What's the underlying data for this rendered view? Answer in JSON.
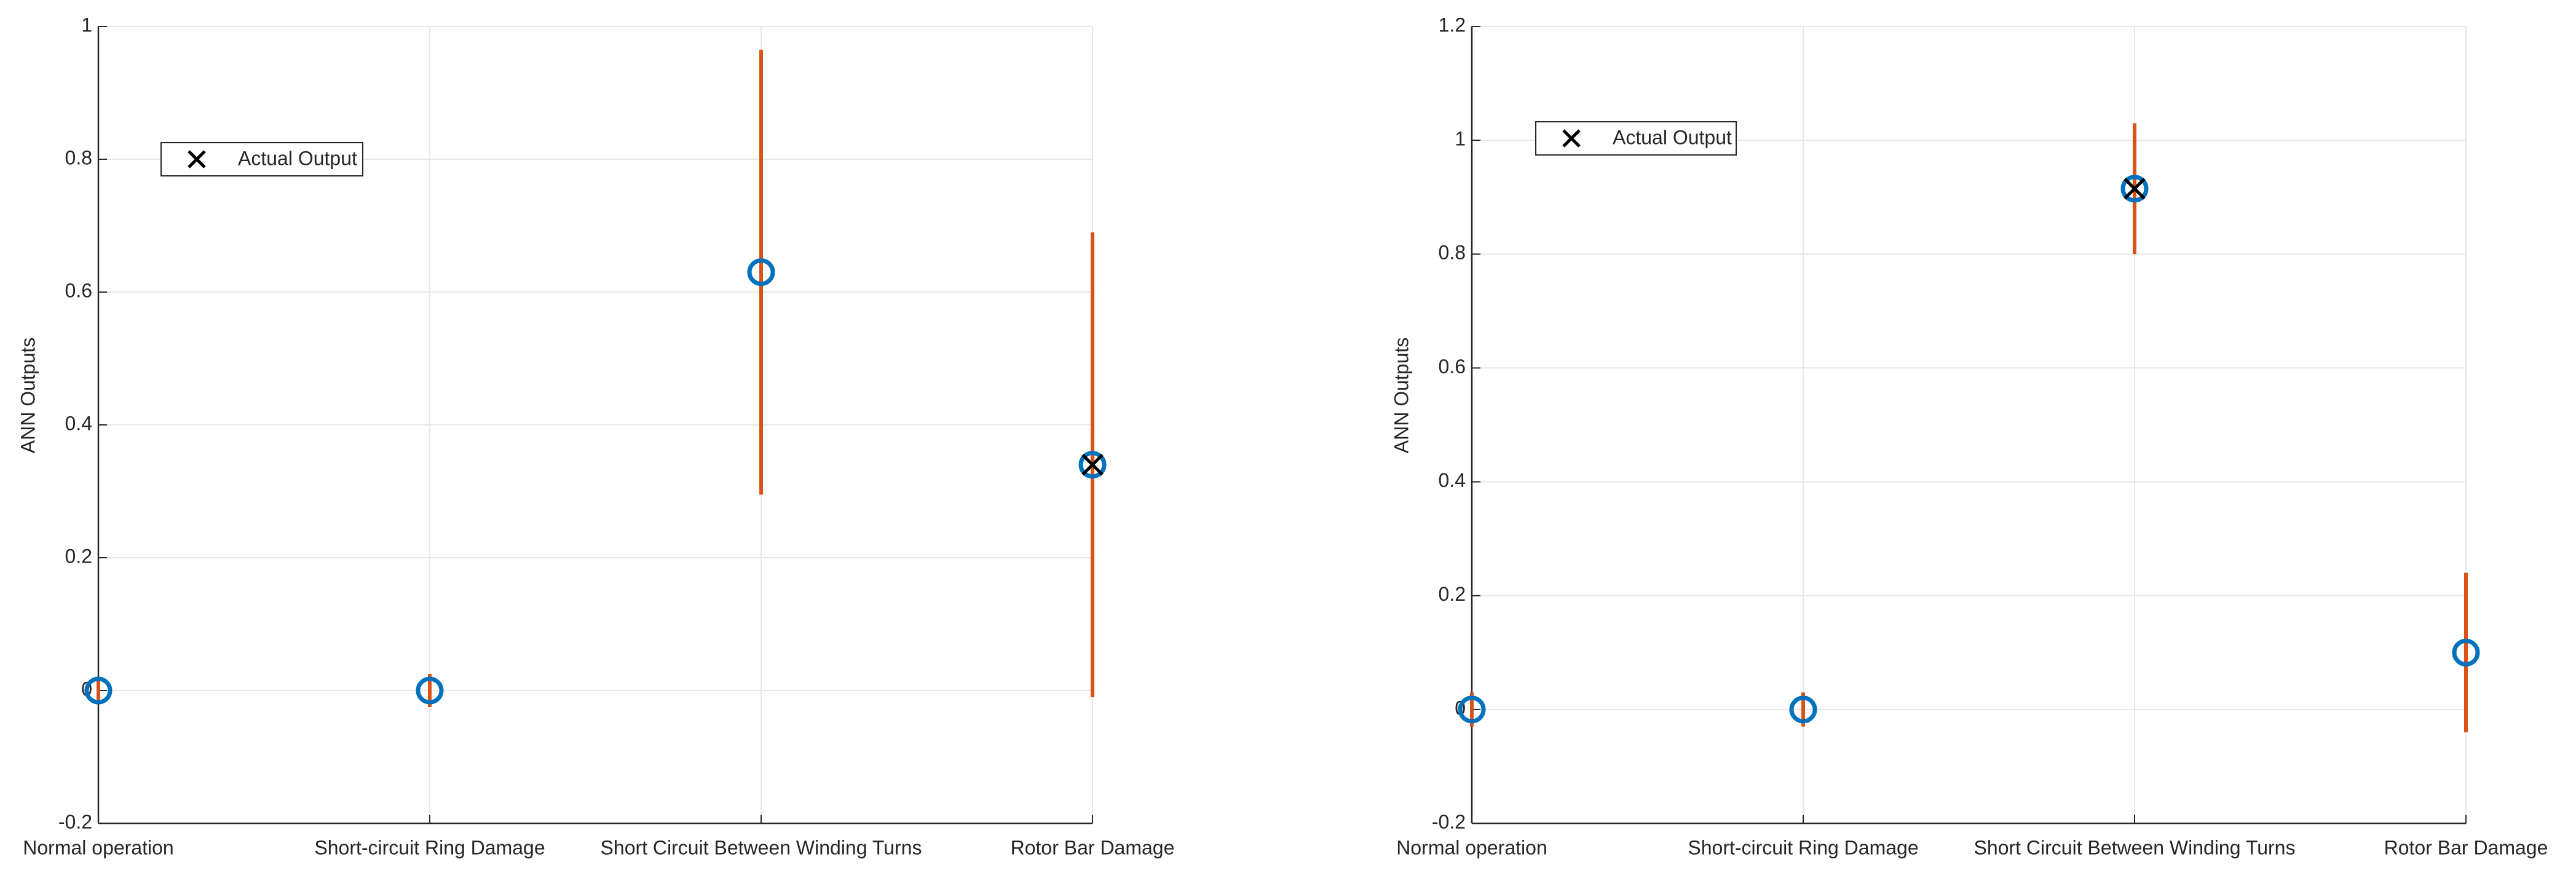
{
  "chart_data": [
    {
      "type": "errorbar",
      "ylabel": "ANN Outputs",
      "categories": [
        "Normal operation",
        "Short-circuit Ring Damage",
        "Short Circuit Between Winding Turns",
        "Rotor Bar Damage"
      ],
      "values": [
        0,
        0,
        0.63,
        0.34
      ],
      "errors": [
        0.02,
        0.025,
        0.335,
        0.35
      ],
      "color": "#0072bd",
      "error_color": "#d95319",
      "actual": {
        "name": "Actual Output",
        "color": "#000000",
        "values": [
          null,
          null,
          null,
          0.34
        ]
      },
      "ylim": [
        -0.2,
        1
      ],
      "yticks": [
        -0.2,
        0,
        0.2,
        0.4,
        0.6,
        0.8,
        1
      ],
      "grid": true
    },
    {
      "type": "errorbar",
      "ylabel": "ANN Outputs",
      "categories": [
        "Normal operation",
        "Short-circuit Ring Damage",
        "Short Circuit Between Winding Turns",
        "Rotor Bar Damage"
      ],
      "values": [
        0,
        0,
        0.915,
        0.1
      ],
      "errors": [
        0.03,
        0.03,
        0.115,
        0.14
      ],
      "color": "#0072bd",
      "error_color": "#d95319",
      "actual": {
        "name": "Actual Output",
        "color": "#000000",
        "values": [
          null,
          null,
          0.915,
          null
        ]
      },
      "ylim": [
        -0.2,
        1.2
      ],
      "yticks": [
        -0.2,
        0,
        0.2,
        0.4,
        0.6,
        0.8,
        1,
        1.2
      ],
      "grid": true
    }
  ]
}
